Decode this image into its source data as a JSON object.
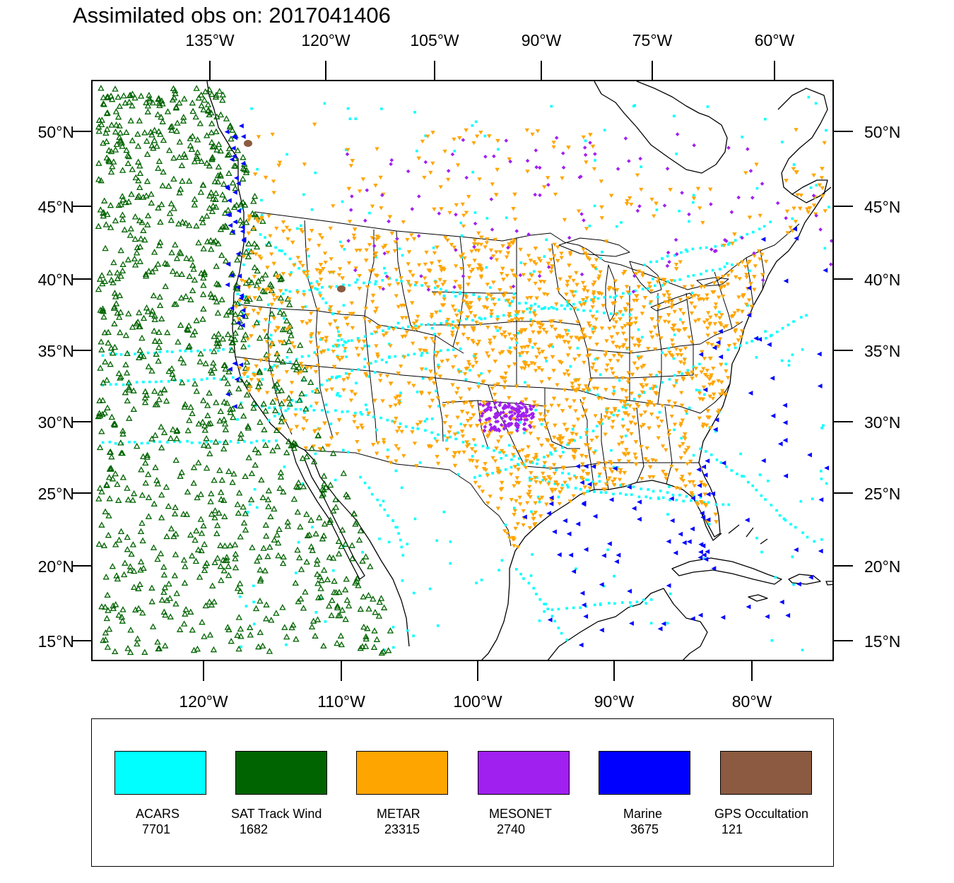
{
  "title": "Assimilated obs on: 2017041406",
  "axes": {
    "top_lon_labels": [
      "135°W",
      "120°W",
      "105°W",
      "90°W",
      "75°W",
      "60°W"
    ],
    "bottom_lon_labels": [
      "120°W",
      "110°W",
      "100°W",
      "90°W",
      "80°W"
    ],
    "lat_labels": [
      "50°N",
      "45°N",
      "40°N",
      "35°N",
      "30°N",
      "25°N",
      "20°N",
      "15°N"
    ]
  },
  "legend": [
    {
      "name": "ACARS",
      "count": "7701",
      "color": "#00ffff",
      "marker": "square"
    },
    {
      "name": "SAT Track Wind",
      "count": "1682",
      "color": "#006400",
      "marker": "triangle-up-open"
    },
    {
      "name": "METAR",
      "count": "23315",
      "color": "#ffa500",
      "marker": "triangle-down"
    },
    {
      "name": "MESONET",
      "count": "2740",
      "color": "#a020f0",
      "marker": "diamond"
    },
    {
      "name": "Marine",
      "count": "3675",
      "color": "#0000ff",
      "marker": "triangle-left"
    },
    {
      "name": "GPS Occultation",
      "count": "121",
      "color": "#8b5a40",
      "marker": "circle"
    }
  ]
}
